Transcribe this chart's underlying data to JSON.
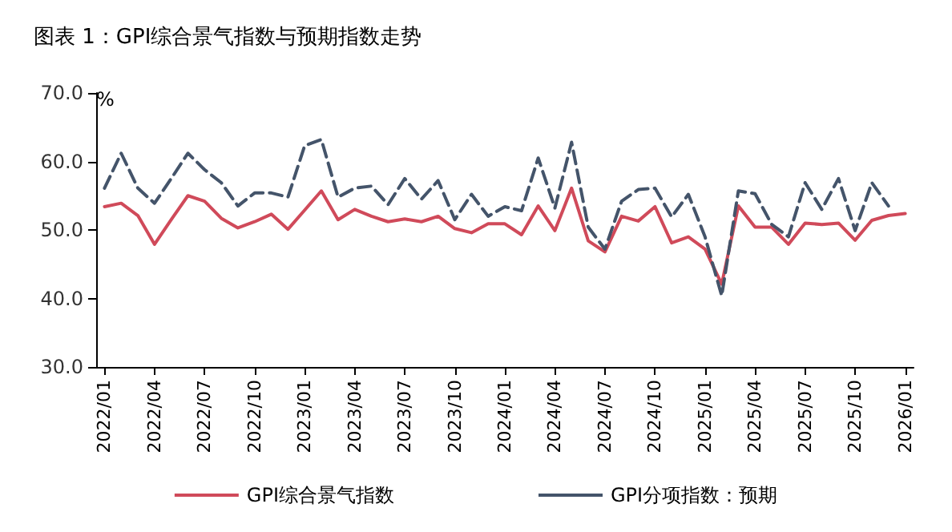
{
  "chart_data": {
    "type": "line",
    "title": "图表 1：GPI综合景气指数与预期指数走势",
    "ylabel": "%",
    "categories": [
      "2022/01",
      null,
      null,
      "2022/04",
      null,
      null,
      "2022/07",
      null,
      null,
      "2022/10",
      null,
      null,
      "2023/01",
      null,
      null,
      "2023/04",
      null,
      null,
      "2023/07",
      null,
      null,
      "2023/10",
      null,
      null,
      "2024/01",
      null,
      null,
      "2024/04",
      null,
      null,
      "2024/07",
      null,
      null,
      "2024/10",
      null,
      null,
      "2025/01",
      null,
      null,
      "2025/04",
      null,
      null,
      "2025/07",
      null,
      null,
      "2025/10",
      null,
      null,
      "2026/01"
    ],
    "series": [
      {
        "name": "GPI综合景气指数",
        "color": "#d04a5a",
        "line_style": "solid",
        "values": [
          53.4,
          53.9,
          52.1,
          47.9,
          51.5,
          55.0,
          54.2,
          51.7,
          50.3,
          51.2,
          52.3,
          50.1,
          52.9,
          55.7,
          51.5,
          53.0,
          52.0,
          51.2,
          51.6,
          51.2,
          52.0,
          50.2,
          49.6,
          50.9,
          50.9,
          49.3,
          53.5,
          49.9,
          56.1,
          48.4,
          46.8,
          52.0,
          51.3,
          53.4,
          48.1,
          49.0,
          47.2,
          42.1,
          53.5,
          50.4,
          50.4,
          47.9,
          51.0,
          50.8,
          51.0,
          48.5,
          51.4,
          52.1,
          52.4
        ]
      },
      {
        "name": "GPI分项指数：预期",
        "color": "#44546a",
        "line_style": "dashed",
        "values": [
          56.1,
          61.2,
          56.1,
          53.9,
          57.5,
          61.2,
          58.8,
          56.9,
          53.5,
          55.4,
          55.4,
          54.8,
          62.3,
          63.2,
          54.8,
          56.1,
          56.4,
          53.7,
          57.5,
          54.5,
          57.2,
          51.5,
          55.2,
          52.0,
          53.4,
          52.8,
          60.5,
          53.2,
          62.8,
          50.4,
          47.2,
          54.2,
          55.9,
          56.1,
          51.9,
          55.2,
          49.0,
          40.4,
          55.7,
          55.3,
          50.8,
          49.0,
          56.9,
          53.0,
          57.5,
          49.9,
          56.9,
          53.5,
          null
        ]
      }
    ],
    "ylim": [
      30,
      70
    ],
    "yticks": [
      {
        "value": 30,
        "label": "30.0"
      },
      {
        "value": 40,
        "label": "40.0"
      },
      {
        "value": 50,
        "label": "50.0"
      },
      {
        "value": 60,
        "label": "60.0"
      },
      {
        "value": 70,
        "label": "70.0"
      }
    ],
    "grid": false,
    "legend": "bottom",
    "marker": "none"
  }
}
